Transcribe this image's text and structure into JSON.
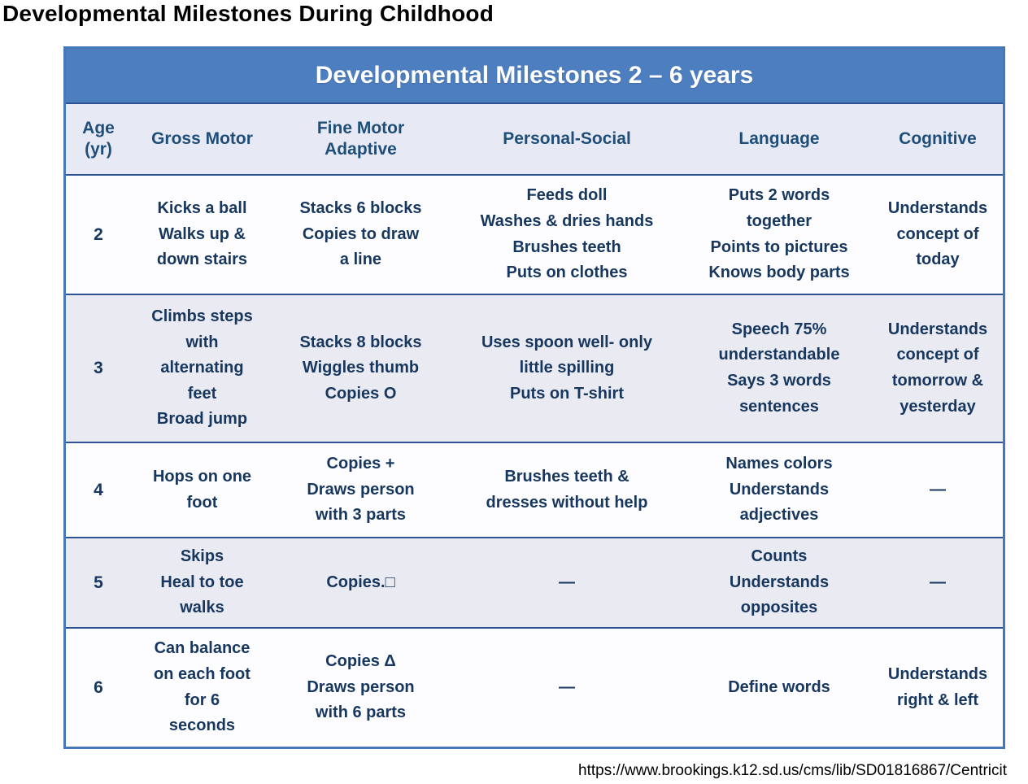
{
  "page_title": "Developmental Milestones During Childhood",
  "colors": {
    "banner_blue": "#4d7ebf",
    "header_text_blue": "#1f4e79",
    "body_text_navy": "#17375e",
    "band_fill": "#e9eaf2",
    "outer_border": "#4478b6",
    "row_divider": "#2e5395"
  },
  "table": {
    "title": "Developmental Milestones 2 – 6 years",
    "columns": {
      "age": "Age\n(yr)",
      "gross_motor": "Gross Motor",
      "fine_motor": "Fine Motor\nAdaptive",
      "personal_social": "Personal-Social",
      "language": "Language",
      "cognitive": "Cognitive"
    },
    "rows": [
      {
        "age": "2",
        "gross_motor": "Kicks a ball\nWalks up &\ndown stairs",
        "fine_motor": "Stacks 6 blocks\nCopies to draw\na line",
        "personal_social": "Feeds doll\nWashes & dries hands\nBrushes teeth\nPuts on clothes",
        "language": "Puts 2 words\ntogether\nPoints to pictures\nKnows body parts",
        "cognitive": "Understands\nconcept of\ntoday"
      },
      {
        "age": "3",
        "gross_motor": "Climbs steps\nwith\nalternating\nfeet\nBroad jump",
        "fine_motor": "Stacks 8 blocks\nWiggles thumb\nCopies O",
        "personal_social": "Uses spoon well- only\nlittle spilling\nPuts on T-shirt",
        "language": "Speech 75%\nunderstandable\nSays 3 words\nsentences",
        "cognitive": "Understands\nconcept of\ntomorrow &\nyesterday"
      },
      {
        "age": "4",
        "gross_motor": "Hops on one\nfoot",
        "fine_motor": "Copies +\nDraws person\nwith 3 parts",
        "personal_social": "Brushes teeth &\ndresses without help",
        "language": "Names colors\nUnderstands\nadjectives",
        "cognitive": "—"
      },
      {
        "age": "5",
        "gross_motor": "Skips\nHeal to toe\nwalks",
        "fine_motor": "Copies.□",
        "personal_social": "—",
        "language": "Counts\nUnderstands\nopposites",
        "cognitive": "—"
      },
      {
        "age": "6",
        "gross_motor": "Can balance\non each foot\nfor 6\nseconds",
        "fine_motor": "Copies Δ\nDraws person\nwith 6 parts",
        "personal_social": "—",
        "language": "Define words",
        "cognitive": "Understands\nright & left"
      }
    ]
  },
  "footer": {
    "source_url": "https://www.brookings.k12.sd.us/cms/lib/SD01816867/Centricit"
  }
}
